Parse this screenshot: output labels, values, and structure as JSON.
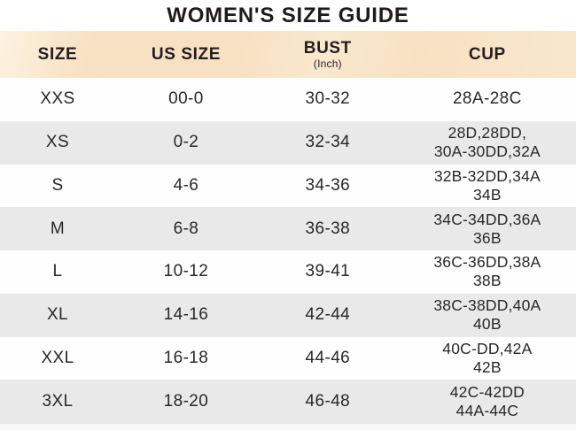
{
  "title": "WOMEN'S SIZE GUIDE",
  "table": {
    "columns": [
      {
        "label": "SIZE"
      },
      {
        "label": "US SIZE"
      },
      {
        "label": "BUST",
        "sub": "(Inch)"
      },
      {
        "label": "CUP"
      }
    ],
    "rows": [
      {
        "size": "XXS",
        "us_size": "00-0",
        "bust": "30-32",
        "cup": "28A-28C"
      },
      {
        "size": "XS",
        "us_size": "0-2",
        "bust": "32-34",
        "cup": "28D,28DD,\n30A-30DD,32A"
      },
      {
        "size": "S",
        "us_size": "4-6",
        "bust": "34-36",
        "cup": "32B-32DD,34A\n34B"
      },
      {
        "size": "M",
        "us_size": "6-8",
        "bust": "36-38",
        "cup": "34C-34DD,36A\n36B"
      },
      {
        "size": "L",
        "us_size": "10-12",
        "bust": "39-41",
        "cup": "36C-36DD,38A\n38B"
      },
      {
        "size": "XL",
        "us_size": "14-16",
        "bust": "42-44",
        "cup": "38C-38DD,40A\n40B"
      },
      {
        "size": "XXL",
        "us_size": "16-18",
        "bust": "44-46",
        "cup": "40C-DD,42A\n42B"
      },
      {
        "size": "3XL",
        "us_size": "18-20",
        "bust": "46-48",
        "cup": "42C-42DD\n44A-44C"
      }
    ]
  },
  "colors": {
    "title_text": "#201a1b",
    "body_text": "#282828",
    "header_band": "#f7e1c2",
    "header_band_light": "#fdf2e0",
    "row_white": "#fefefe",
    "row_alt": "#e9e9e9",
    "strip": "#f7f7f7"
  }
}
